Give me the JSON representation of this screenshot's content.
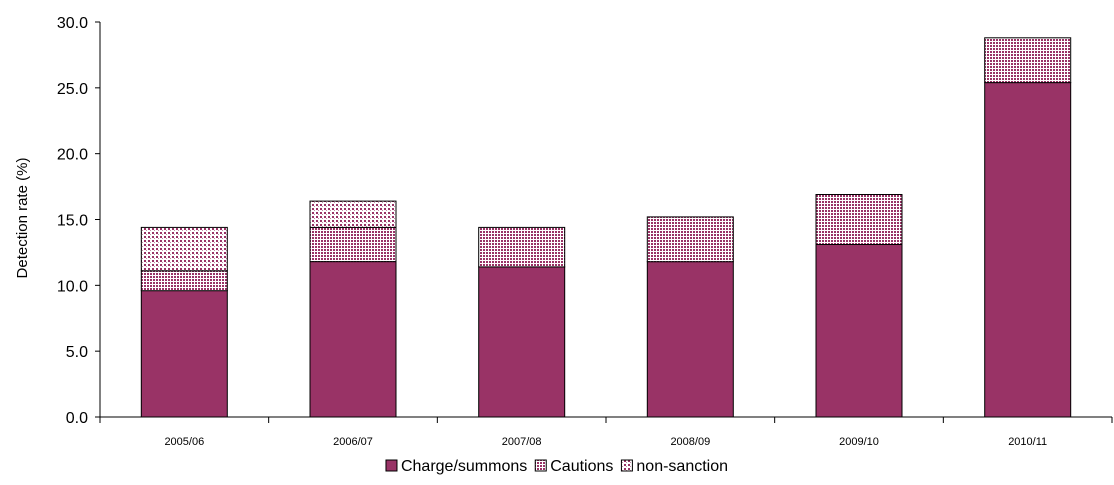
{
  "chart_data": {
    "type": "bar",
    "stacked": true,
    "categories": [
      "2005/06",
      "2006/07",
      "2007/08",
      "2008/09",
      "2009/10",
      "2010/11"
    ],
    "series": [
      {
        "name": "Charge/summons",
        "values": [
          9.6,
          11.8,
          11.4,
          11.8,
          13.1,
          25.4
        ],
        "color": "#993366",
        "pattern": "solid"
      },
      {
        "name": "Cautions",
        "values": [
          1.5,
          2.6,
          3.0,
          3.4,
          3.8,
          3.4
        ],
        "color": "#993366",
        "pattern": "dense-dots"
      },
      {
        "name": "non-sanction",
        "values": [
          3.3,
          2.0,
          0.0,
          0.0,
          0.0,
          0.0
        ],
        "color": "#993366",
        "pattern": "sparse-dots"
      }
    ],
    "title": "",
    "xlabel": "",
    "ylabel": "Detection rate (%)",
    "ylim": [
      0,
      30
    ],
    "yticks": [
      "0.0",
      "5.0",
      "10.0",
      "15.0",
      "20.0",
      "25.0",
      "30.0"
    ],
    "grid": false,
    "legend_position": "bottom"
  }
}
